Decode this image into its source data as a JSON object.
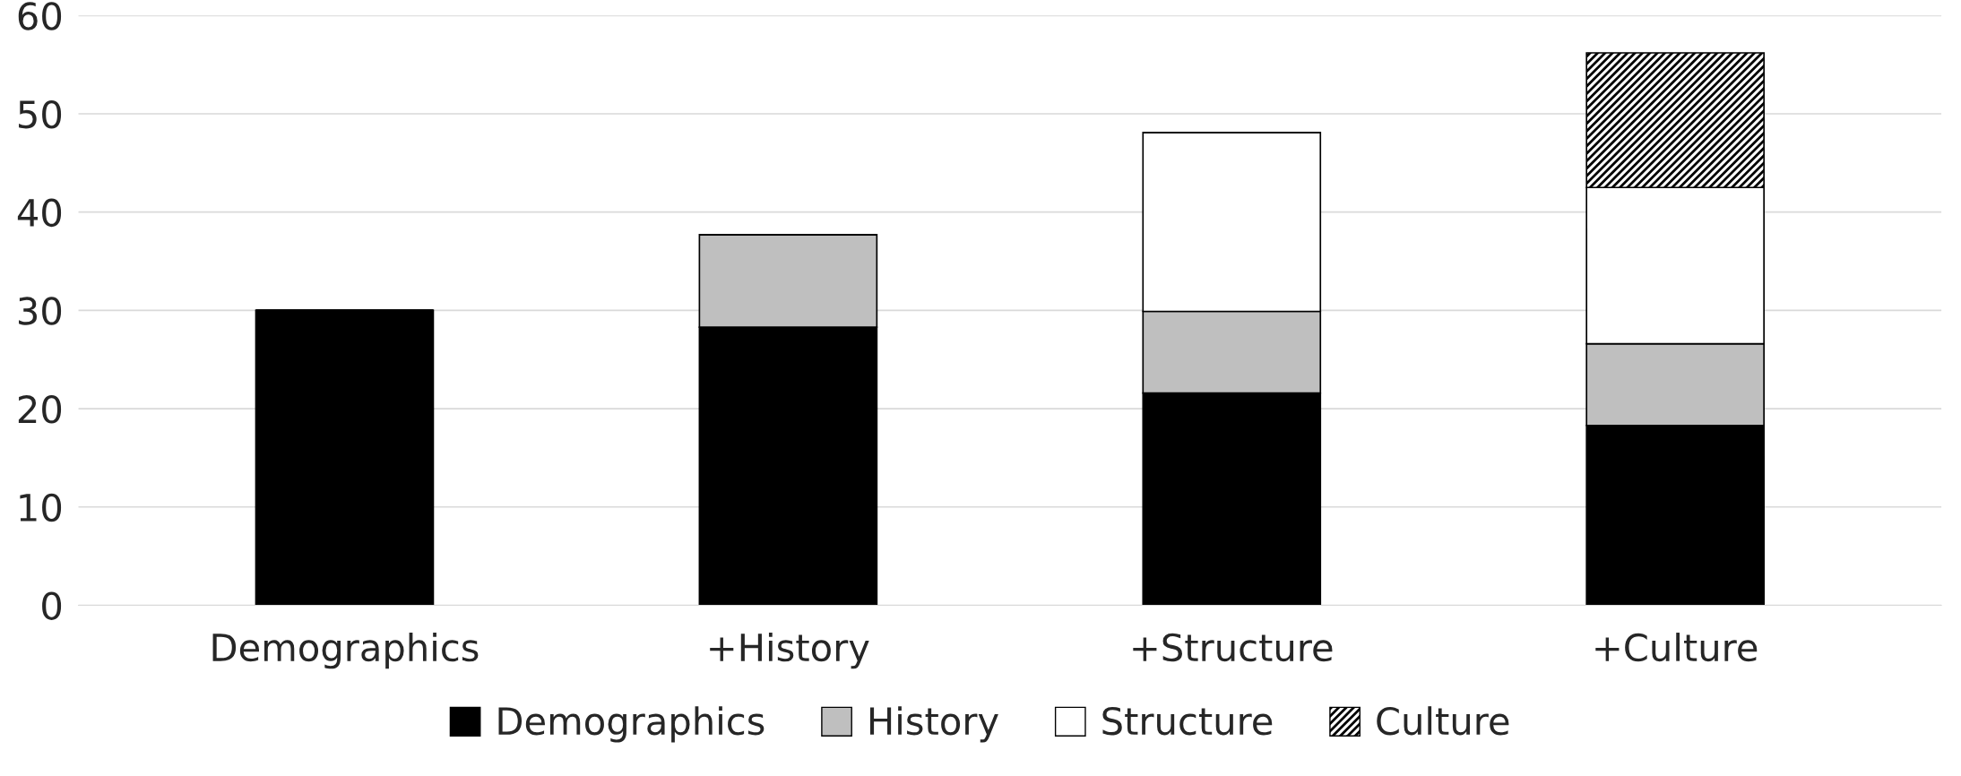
{
  "chart_data": {
    "type": "bar",
    "stacked": true,
    "categories": [
      "Demographics",
      "+History",
      "+Structure",
      "+Culture"
    ],
    "series": [
      {
        "name": "Demographics",
        "color": "#000000",
        "values": [
          30,
          28.3,
          21.6,
          18.3
        ]
      },
      {
        "name": "History",
        "color": "#bfbfbf",
        "values": [
          null,
          9.4,
          8.3,
          8.3
        ]
      },
      {
        "name": "Structure",
        "color": "#ffffff",
        "values": [
          null,
          null,
          18.2,
          15.9
        ]
      },
      {
        "name": "Culture",
        "color": "#000000",
        "values": [
          null,
          null,
          null,
          13.7
        ]
      }
    ],
    "ylim": [
      0,
      60
    ],
    "yticks": [
      0,
      10,
      20,
      30,
      40,
      50,
      60
    ],
    "grid": "y",
    "legend": "bottom"
  }
}
